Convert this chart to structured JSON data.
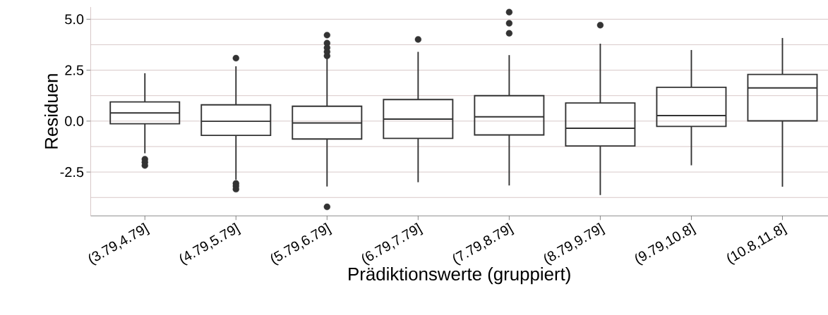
{
  "chart_data": {
    "type": "box",
    "xlabel": "Prädiktionswerte (gruppiert)",
    "ylabel": "Residuen",
    "categories": [
      "(3.79,4.79]",
      "(4.79,5.79]",
      "(5.79,6.79]",
      "(6.79,7.79]",
      "(7.79,8.79]",
      "(8.79,9.79]",
      "(9.79,10.8]",
      "(10.8,11.8]"
    ],
    "color": "#333333",
    "boxes": [
      {
        "low": -1.58,
        "q1": -0.13,
        "median": 0.4,
        "q3": 0.94,
        "high": 2.35,
        "outliers": [
          -1.87,
          -2.02,
          -2.18
        ]
      },
      {
        "low": -2.88,
        "q1": -0.7,
        "median": -0.01,
        "q3": 0.8,
        "high": 2.69,
        "outliers": [
          3.09,
          -3.06,
          -3.19,
          -3.34
        ]
      },
      {
        "low": -3.21,
        "q1": -0.88,
        "median": -0.09,
        "q3": 0.73,
        "high": 3.1,
        "outliers": [
          4.22,
          3.83,
          3.6,
          3.4,
          3.2,
          -4.21
        ]
      },
      {
        "low": -3.0,
        "q1": -0.85,
        "median": 0.1,
        "q3": 1.06,
        "high": 3.4,
        "outliers": [
          4.01
        ]
      },
      {
        "low": -3.16,
        "q1": -0.68,
        "median": 0.21,
        "q3": 1.25,
        "high": 3.24,
        "outliers": [
          5.35,
          4.8,
          4.31
        ]
      },
      {
        "low": -3.63,
        "q1": -1.22,
        "median": -0.35,
        "q3": 0.89,
        "high": 3.8,
        "outliers": [
          4.71
        ]
      },
      {
        "low": -2.17,
        "q1": -0.26,
        "median": 0.27,
        "q3": 1.66,
        "high": 3.49
      },
      {
        "low": -3.22,
        "q1": 0.01,
        "median": 1.63,
        "q3": 2.29,
        "high": 4.08
      }
    ],
    "ylim": [
      -4.65,
      5.6
    ],
    "yticks": [
      {
        "value": -2.5,
        "label": "-2.5"
      },
      {
        "value": 0,
        "label": "0.0"
      },
      {
        "value": 2.5,
        "label": "2.5"
      },
      {
        "value": 5,
        "label": "5.0"
      }
    ],
    "grid": "y"
  }
}
